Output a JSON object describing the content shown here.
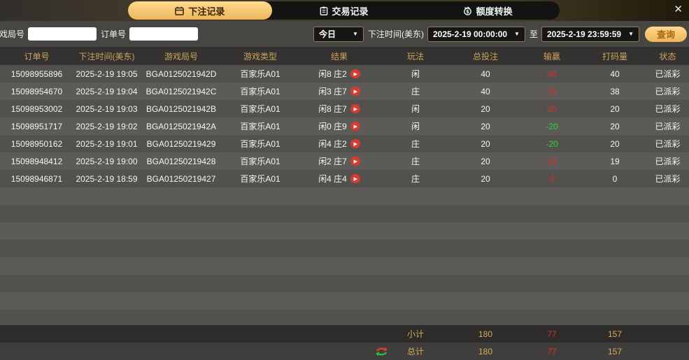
{
  "tabs": [
    {
      "label": "下注记录",
      "icon": "calendar-icon",
      "active": true
    },
    {
      "label": "交易记录",
      "icon": "clipboard-icon",
      "active": false
    },
    {
      "label": "额度转换",
      "icon": "coin-transfer-icon",
      "active": false
    }
  ],
  "close_label": "✕",
  "filters": {
    "game_round_label": "游戏局号",
    "order_no_label": "订单号",
    "game_round_value": "",
    "order_no_value": "",
    "date_preset": "今日",
    "caret": "▼",
    "bet_time_label": "下注时间(美东)",
    "start_time": "2025-2-19 00:00:00",
    "to_label": "至",
    "end_time": "2025-2-19 23:59:59",
    "search_label": "查询"
  },
  "table": {
    "columns": [
      "订单号",
      "下注时间(美东)",
      "游戏局号",
      "游戏类型",
      "结果",
      "玩法",
      "总投注",
      "输赢",
      "打码量",
      "状态"
    ],
    "play_glyph": "▶",
    "rows": [
      {
        "order_id": "15098955896",
        "bet_time": "2025-2-19 19:05",
        "round": "BGA0125021942D",
        "game_type": "百家乐A01",
        "result": "闲8 庄2",
        "play": "闲",
        "total_bet": "40",
        "win_loss": "40",
        "win_color": "red",
        "turnover": "40",
        "status": "已派彩"
      },
      {
        "order_id": "15098954670",
        "bet_time": "2025-2-19 19:04",
        "round": "BGA0125021942C",
        "game_type": "百家乐A01",
        "result": "闲3 庄7",
        "play": "庄",
        "total_bet": "40",
        "win_loss": "38",
        "win_color": "red",
        "turnover": "38",
        "status": "已派彩"
      },
      {
        "order_id": "15098953002",
        "bet_time": "2025-2-19 19:03",
        "round": "BGA0125021942B",
        "game_type": "百家乐A01",
        "result": "闲8 庄7",
        "play": "闲",
        "total_bet": "20",
        "win_loss": "20",
        "win_color": "red",
        "turnover": "20",
        "status": "已派彩"
      },
      {
        "order_id": "15098951717",
        "bet_time": "2025-2-19 19:02",
        "round": "BGA0125021942A",
        "game_type": "百家乐A01",
        "result": "闲0 庄9",
        "play": "闲",
        "total_bet": "20",
        "win_loss": "-20",
        "win_color": "green",
        "turnover": "20",
        "status": "已派彩"
      },
      {
        "order_id": "15098950162",
        "bet_time": "2025-2-19 19:01",
        "round": "BGA01250219429",
        "game_type": "百家乐A01",
        "result": "闲4 庄2",
        "play": "庄",
        "total_bet": "20",
        "win_loss": "-20",
        "win_color": "green",
        "turnover": "20",
        "status": "已派彩"
      },
      {
        "order_id": "15098948412",
        "bet_time": "2025-2-19 19:00",
        "round": "BGA01250219428",
        "game_type": "百家乐A01",
        "result": "闲2 庄7",
        "play": "庄",
        "total_bet": "20",
        "win_loss": "19",
        "win_color": "red",
        "turnover": "19",
        "status": "已派彩"
      },
      {
        "order_id": "15098946871",
        "bet_time": "2025-2-19 18:59",
        "round": "BGA01250219427",
        "game_type": "百家乐A01",
        "result": "闲4 庄4",
        "play": "庄",
        "total_bet": "20",
        "win_loss": "0",
        "win_color": "red",
        "turnover": "0",
        "status": "已派彩"
      }
    ],
    "subtotal": {
      "label": "小计",
      "total_bet": "180",
      "win_loss": "77",
      "turnover": "157"
    },
    "total": {
      "label": "总计",
      "total_bet": "180",
      "win_loss": "77",
      "turnover": "157"
    }
  },
  "colors": {
    "accent_gold": "#f0bb60",
    "header_text_gold": "#cda35f",
    "win_red": "#d53227",
    "loss_green": "#2fd335",
    "play_button_red": "#d83b31"
  },
  "icons": [
    "calendar-icon",
    "clipboard-icon",
    "coin-transfer-icon",
    "chevron-down-icon",
    "play-icon",
    "refresh-swap-icon",
    "close-icon"
  ]
}
